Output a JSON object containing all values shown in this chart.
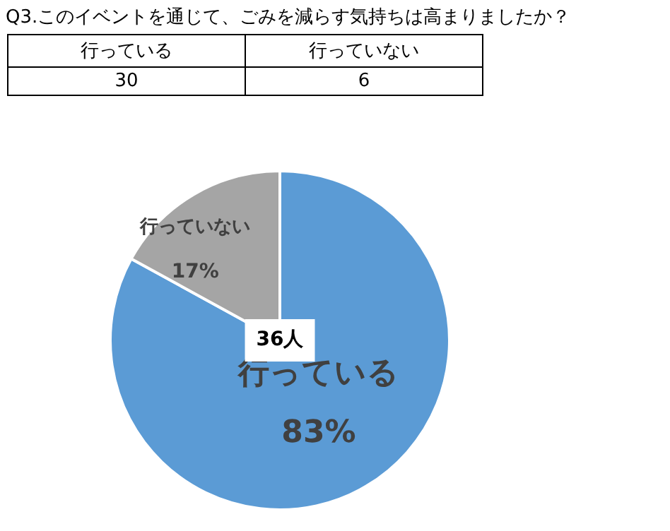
{
  "chart_data": [
    {
      "type": "other",
      "title": "Q3.このイベントを通じて、ごみを減らす気持ちは高まりましたか？",
      "categories": [
        "行っている",
        "行っていない"
      ],
      "values": [
        30,
        6
      ],
      "data_labels": true
    },
    {
      "type": "pie",
      "categories": [
        "行っている",
        "行っていない"
      ],
      "values": [
        83,
        17
      ],
      "colors": [
        "#5b9bd5",
        "#a5a5a5"
      ],
      "value_labels": [
        "83%",
        "17%"
      ],
      "annotations": [
        "36人"
      ]
    }
  ]
}
